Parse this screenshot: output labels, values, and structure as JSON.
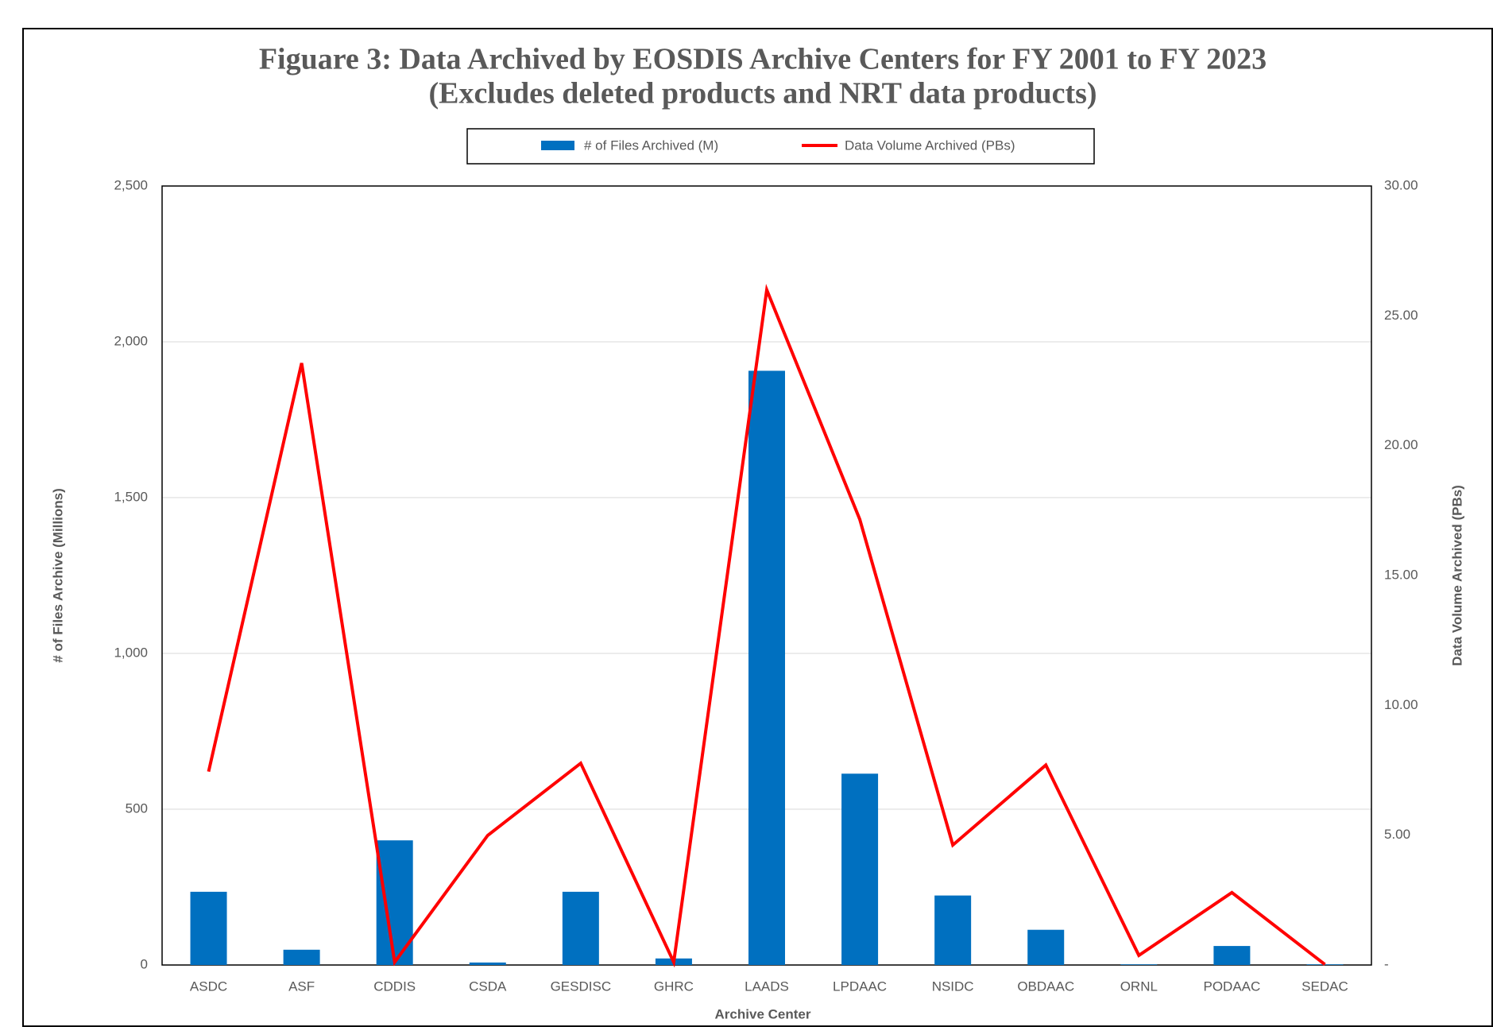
{
  "chart_data": {
    "type": "bar",
    "title": "Figuare 3: Data Archived by EOSDIS Archive Centers for FY 2001 to FY 2023",
    "subtitle": "(Excludes deleted products and NRT data products)",
    "x_label": "Archive Center",
    "y_label": "# of Files Archive (Millions)",
    "y2_label": "Data Volume Archived (PBs)",
    "categories": [
      "ASDC",
      "ASF",
      "CDDIS",
      "CSDA",
      "GESDISC",
      "GHRC",
      "LAADS",
      "LPDAAC",
      "NSIDC",
      "OBDAAC",
      "ORNL",
      "PODAAC",
      "SEDAC"
    ],
    "series": [
      {
        "name": "# of Files Archived (M)",
        "type": "bar",
        "color": "#0070c0",
        "values": [
          235,
          49,
          400,
          8,
          235,
          21,
          1907,
          614,
          223,
          113,
          2,
          61,
          2
        ]
      },
      {
        "name": "Data Volume Archived (PBs)",
        "type": "line",
        "axis": "y2",
        "color": "#ff0000",
        "values": [
          7.45,
          23.18,
          0.11,
          4.99,
          7.77,
          0.11,
          26.0,
          17.16,
          4.62,
          7.7,
          0.37,
          2.79,
          0.02
        ]
      }
    ],
    "ylim": [
      0,
      2500
    ],
    "yticks": [
      0,
      500,
      {
        "value": 1000,
        "label": "1,000"
      },
      {
        "value": 1500,
        "label": "1,500"
      },
      {
        "value": 2000,
        "label": "2,000"
      },
      {
        "value": 2500,
        "label": "2,500"
      }
    ],
    "y2lim": [
      0,
      30
    ],
    "y2ticks": [
      {
        "value": 0,
        "label": "-"
      },
      {
        "value": 5,
        "label": "5.00"
      },
      {
        "value": 10,
        "label": "10.00"
      },
      {
        "value": 15,
        "label": "15.00"
      },
      {
        "value": 20,
        "label": "20.00"
      },
      {
        "value": 25,
        "label": "25.00"
      },
      {
        "value": 30,
        "label": "30.00"
      }
    ],
    "grid": true,
    "legend": "top"
  }
}
